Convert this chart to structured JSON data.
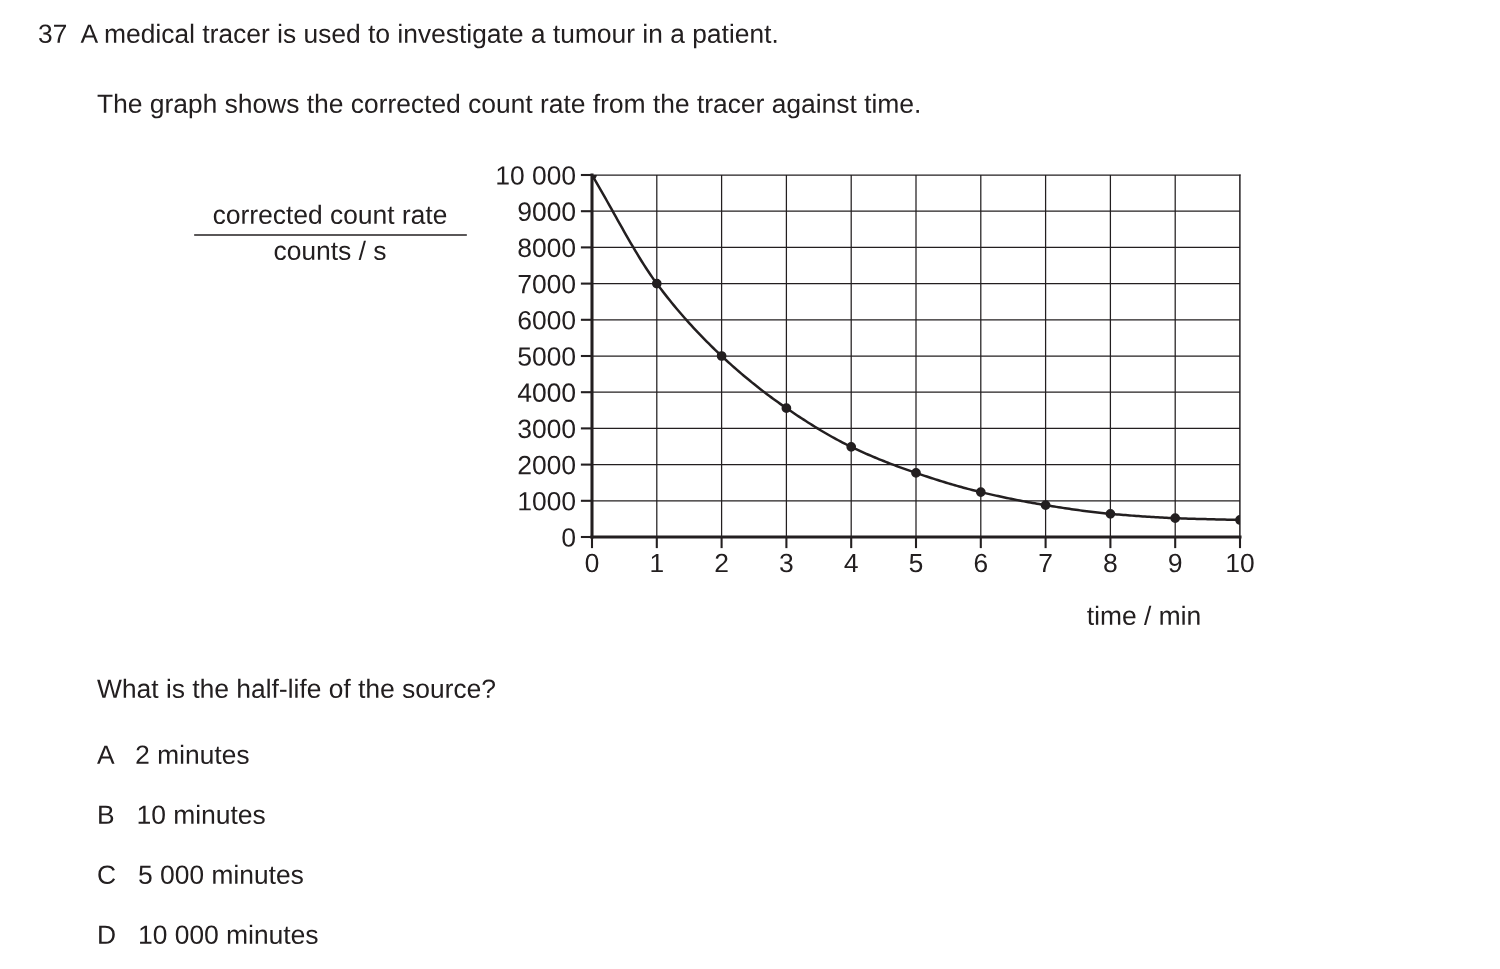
{
  "chart_data": {
    "type": "line",
    "ylabel": "corrected count rate\ncounts / s",
    "xlabel": "time / min",
    "x": [
      0,
      1,
      2,
      3,
      4,
      5,
      6,
      7,
      8,
      9,
      10
    ],
    "series": [
      {
        "color": "#231f20",
        "values": [
          10000,
          7000,
          5000,
          3560,
          2490,
          1770,
          1240,
          880,
          640,
          520,
          470
        ]
      }
    ],
    "xlim": [
      0,
      10
    ],
    "xticks": [
      0,
      1,
      2,
      3,
      4,
      5,
      6,
      7,
      8,
      9,
      10
    ],
    "ylim": [
      0,
      10000
    ],
    "yticks": [
      0,
      1000,
      2000,
      3000,
      4000,
      5000,
      6000,
      7000,
      8000,
      9000,
      {
        "value": 10000,
        "label": "10 000"
      }
    ],
    "grid": true,
    "marker": "circle",
    "line_style": "solid",
    "annotations": [
      "37  A medical tracer is used to investigate a tumour in a patient.",
      "The graph shows the corrected count rate from the tracer against time.",
      "What is the half-life of the source?",
      "A   2 minutes",
      "B   10 minutes",
      "C   5 000 minutes",
      "D   10 000 minutes"
    ]
  }
}
